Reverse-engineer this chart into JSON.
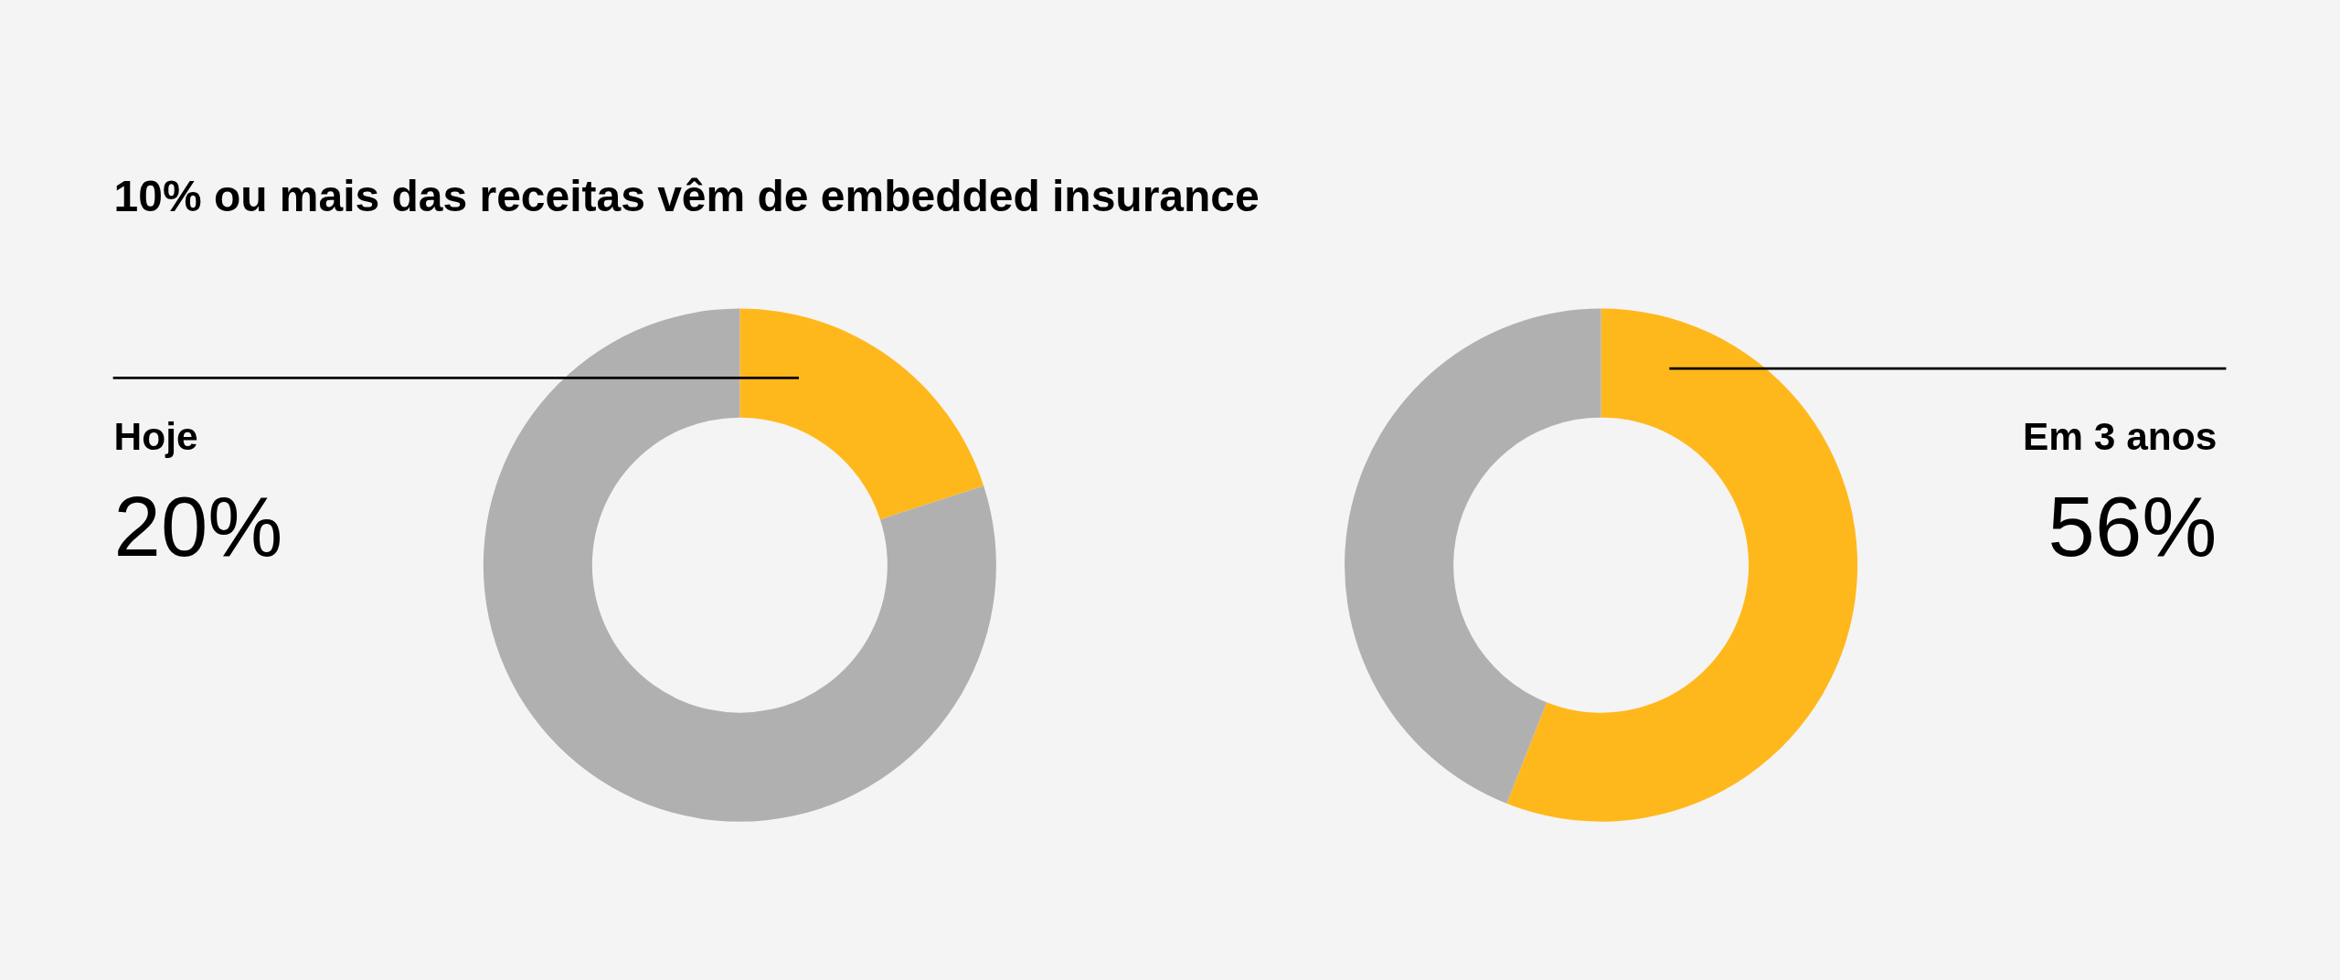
{
  "chart_data": [
    {
      "type": "donut",
      "title": "10% ou mais das receitas vêm de embedded insurance",
      "categories": [
        "Hoje",
        null
      ],
      "values": [
        20,
        80
      ],
      "colors": [
        "#ffb81c",
        "#b0b0b0"
      ],
      "value_labels": [
        "20%",
        null
      ],
      "legend": false
    },
    {
      "type": "donut",
      "categories": [
        "Em 3 anos",
        null
      ],
      "values": [
        56,
        44
      ],
      "colors": [
        "#ffb81c",
        "#b0b0b0"
      ],
      "value_labels": [
        "56%",
        null
      ],
      "legend": false
    }
  ]
}
